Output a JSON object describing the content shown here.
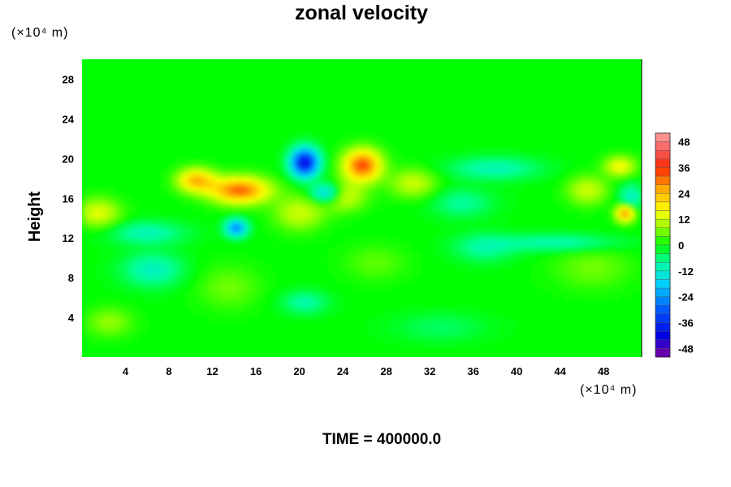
{
  "chart_data": {
    "type": "heatmap",
    "title": "zonal velocity",
    "ylabel": "Height",
    "xlabel": "",
    "x_unit": "(×10⁴ m)",
    "y_unit": "(×10⁴ m)",
    "footer": "TIME = 400000.0",
    "xlim": [
      0,
      51.5
    ],
    "ylim": [
      0,
      30
    ],
    "x_ticks": [
      4,
      8,
      12,
      16,
      20,
      24,
      28,
      32,
      36,
      40,
      44,
      48
    ],
    "y_ticks": [
      4,
      8,
      12,
      16,
      20,
      24,
      28
    ],
    "colorbar": {
      "range": [
        -52,
        52
      ],
      "ticks": [
        48,
        36,
        24,
        12,
        0,
        -12,
        -24,
        -36,
        -48
      ],
      "bands": 26
    },
    "background_value": 0,
    "features": [
      {
        "x": 20.5,
        "y": 19.6,
        "value": -42,
        "sx": 0.9,
        "sy": 1.0
      },
      {
        "x": 22.5,
        "y": 16.5,
        "value": -22,
        "sx": 1.0,
        "sy": 0.7
      },
      {
        "x": 14.2,
        "y": 13.0,
        "value": -26,
        "sx": 0.7,
        "sy": 0.6
      },
      {
        "x": 25.8,
        "y": 19.3,
        "value": 34,
        "sx": 1.2,
        "sy": 1.1
      },
      {
        "x": 14.5,
        "y": 16.8,
        "value": 32,
        "sx": 1.9,
        "sy": 0.9
      },
      {
        "x": 10.5,
        "y": 17.8,
        "value": 24,
        "sx": 1.2,
        "sy": 0.8
      },
      {
        "x": 50.0,
        "y": 14.5,
        "value": 30,
        "sx": 0.6,
        "sy": 0.6
      },
      {
        "x": 49.5,
        "y": 19.2,
        "value": 16,
        "sx": 1.0,
        "sy": 0.7
      },
      {
        "x": 24.0,
        "y": 16.2,
        "value": 14,
        "sx": 1.4,
        "sy": 1.0
      },
      {
        "x": 20.0,
        "y": 14.5,
        "value": 12,
        "sx": 1.6,
        "sy": 1.2
      },
      {
        "x": 1.5,
        "y": 14.5,
        "value": 14,
        "sx": 1.4,
        "sy": 1.0
      },
      {
        "x": 30.5,
        "y": 17.5,
        "value": 12,
        "sx": 1.5,
        "sy": 1.0
      },
      {
        "x": 46.5,
        "y": 16.8,
        "value": 12,
        "sx": 1.3,
        "sy": 1.0
      },
      {
        "x": 38.0,
        "y": 19.0,
        "value": -10,
        "sx": 3.0,
        "sy": 0.8
      },
      {
        "x": 35.0,
        "y": 15.5,
        "value": -8,
        "sx": 2.0,
        "sy": 1.0
      },
      {
        "x": 50.5,
        "y": 16.0,
        "value": -12,
        "sx": 0.8,
        "sy": 1.0
      },
      {
        "x": 6.0,
        "y": 12.5,
        "value": -10,
        "sx": 2.5,
        "sy": 0.8
      },
      {
        "x": 44.0,
        "y": 11.5,
        "value": -10,
        "sx": 4.0,
        "sy": 0.6
      },
      {
        "x": 6.5,
        "y": 8.8,
        "value": -11,
        "sx": 2.0,
        "sy": 1.2
      },
      {
        "x": 20.5,
        "y": 5.5,
        "value": -9,
        "sx": 1.5,
        "sy": 0.8
      },
      {
        "x": 37.0,
        "y": 11.0,
        "value": -8,
        "sx": 2.0,
        "sy": 1.0
      },
      {
        "x": 2.5,
        "y": 3.5,
        "value": 8,
        "sx": 1.5,
        "sy": 1.0
      },
      {
        "x": 13.5,
        "y": 7.0,
        "value": 6,
        "sx": 2.0,
        "sy": 1.5
      },
      {
        "x": 27.0,
        "y": 9.5,
        "value": 5,
        "sx": 2.0,
        "sy": 1.2
      },
      {
        "x": 47.0,
        "y": 9.0,
        "value": 6,
        "sx": 2.5,
        "sy": 1.5
      },
      {
        "x": 33.0,
        "y": 3.0,
        "value": -5,
        "sx": 3.0,
        "sy": 1.0
      }
    ]
  }
}
